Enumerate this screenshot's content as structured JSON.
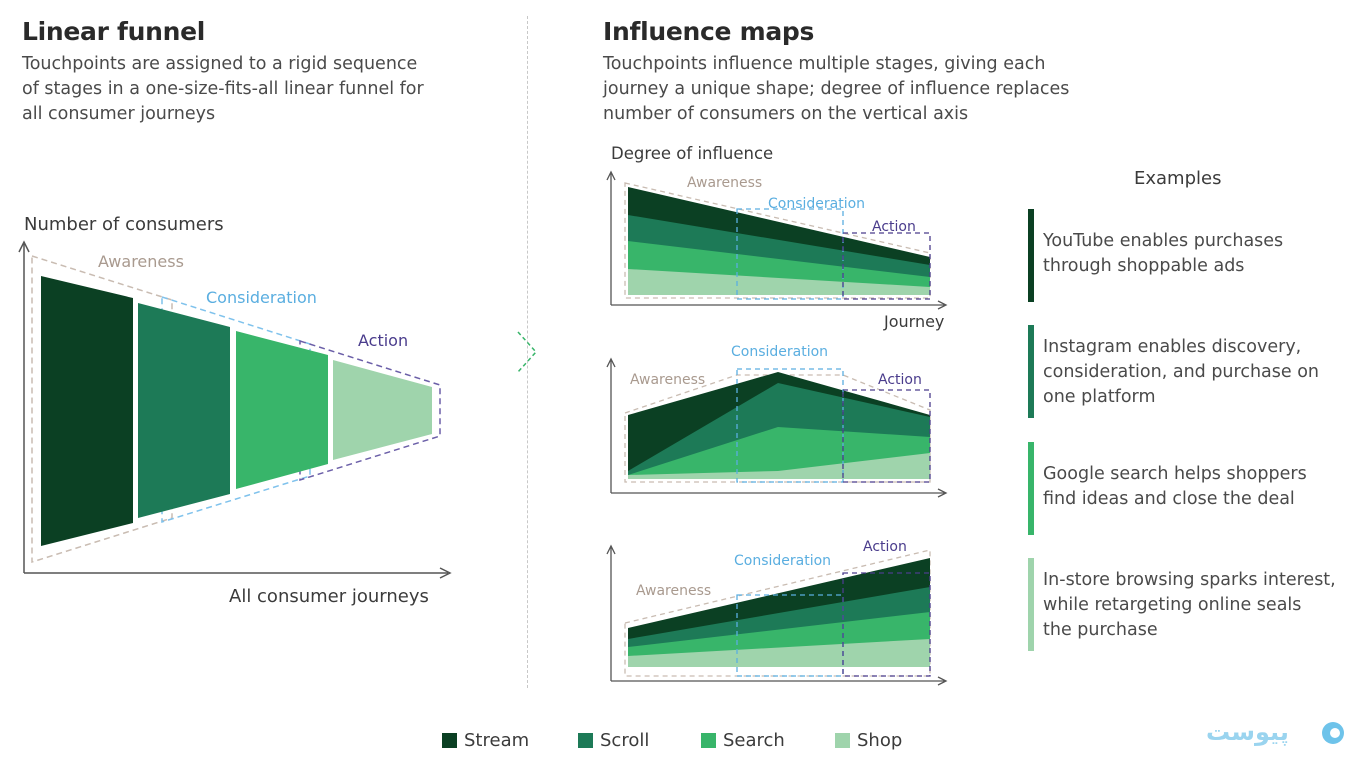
{
  "left": {
    "title": "Linear funnel",
    "subtitle": "Touchpoints are assigned to a rigid sequence\nof stages in a one-size-fits-all linear funnel for\nall consumer journeys",
    "y_axis_label": "Number of consumers",
    "x_axis_label": "All consumer journeys",
    "stages": [
      "Awareness",
      "Consideration",
      "Action"
    ]
  },
  "right": {
    "title": "Influence maps",
    "subtitle": "Touchpoints influence multiple stages, giving each\njourney a unique shape; degree of influence replaces\nnumber of consumers on the vertical axis",
    "y_axis_label": "Degree of influence",
    "x_axis_label": "Journey",
    "stages": [
      "Awareness",
      "Consideration",
      "Action"
    ]
  },
  "examples": {
    "title": "Examples",
    "items": [
      {
        "text": "YouTube enables purchases\nthrough shoppable ads",
        "color": "#0b4023"
      },
      {
        "text": "Instagram enables discovery,\nconsideration, and purchase on\none platform",
        "color": "#1d7a57"
      },
      {
        "text": "Google search helps shoppers\nfind ideas and close the deal",
        "color": "#38b56a"
      },
      {
        "text": "In-store browsing sparks interest,\nwhile retargeting online seals\nthe purchase",
        "color": "#9fd4ac"
      }
    ]
  },
  "legend": [
    {
      "label": "Stream",
      "color": "#0b4023"
    },
    {
      "label": "Scroll",
      "color": "#1d7a57"
    },
    {
      "label": "Search",
      "color": "#38b56a"
    },
    {
      "label": "Shop",
      "color": "#9fd4ac"
    }
  ],
  "stage_colors": {
    "awareness": "#a99a8f",
    "consideration": "#5aaee0",
    "action": "#4a3c8c"
  },
  "logo_text": "پیوست"
}
